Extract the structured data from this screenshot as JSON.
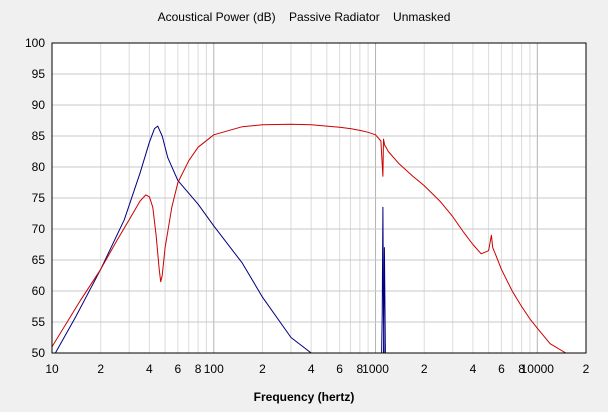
{
  "chart_data": {
    "type": "line",
    "title": "Acoustical Power (dB)    Passive Radiator    Unmasked",
    "xlabel": "Frequency (hertz)",
    "ylabel": "",
    "xscale": "log",
    "xlim": [
      10,
      20000
    ],
    "ylim": [
      50,
      100
    ],
    "grid": true,
    "legend": "none",
    "y_ticks": [
      50,
      55,
      60,
      65,
      70,
      75,
      80,
      85,
      90,
      95,
      100
    ],
    "x_ticks": [
      {
        "value": 10,
        "label": "10"
      },
      {
        "value": 20,
        "label": "2"
      },
      {
        "value": 40,
        "label": "4"
      },
      {
        "value": 60,
        "label": "6"
      },
      {
        "value": 80,
        "label": "8"
      },
      {
        "value": 100,
        "label": "100"
      },
      {
        "value": 200,
        "label": "2"
      },
      {
        "value": 400,
        "label": "4"
      },
      {
        "value": 600,
        "label": "6"
      },
      {
        "value": 800,
        "label": "8"
      },
      {
        "value": 1000,
        "label": "1000"
      },
      {
        "value": 2000,
        "label": "2"
      },
      {
        "value": 4000,
        "label": "4"
      },
      {
        "value": 6000,
        "label": "6"
      },
      {
        "value": 8000,
        "label": "8"
      },
      {
        "value": 10000,
        "label": "10000"
      },
      {
        "value": 20000,
        "label": "2"
      }
    ],
    "series": [
      {
        "color": "#00007f",
        "x": [
          10.5,
          14,
          20,
          28,
          35,
          40,
          43,
          45,
          48,
          52,
          60,
          80,
          100,
          150,
          200,
          300,
          400,
          500
        ],
        "y": [
          50,
          55.8,
          63.5,
          71.5,
          79,
          84,
          86.2,
          86.6,
          85,
          81.5,
          77.8,
          74,
          70.5,
          64.5,
          59,
          52.5,
          50,
          50
        ],
        "segments": [
          {
            "x": [
              1090,
              1100,
              1110,
              1120,
              1130
            ],
            "y": [
              50,
              56,
              73.5,
              56,
              50
            ]
          },
          {
            "x": [
              1120,
              1135,
              1150
            ],
            "y": [
              50,
              67,
              50
            ]
          }
        ]
      },
      {
        "color": "#cc0000",
        "x": [
          10,
          15,
          20,
          25,
          30,
          35,
          38,
          40,
          42,
          44,
          46,
          47,
          48,
          50,
          55,
          60,
          70,
          80,
          100,
          150,
          200,
          300,
          400,
          500,
          600,
          700,
          800,
          900,
          1000,
          1080,
          1110,
          1120,
          1140,
          1160,
          1200,
          1400,
          1700,
          2000,
          2500,
          3000,
          3500,
          4000,
          4500,
          5000,
          5200,
          5300,
          5500,
          6000,
          7000,
          8000,
          9000,
          10000,
          12000,
          15000
        ],
        "y": [
          51,
          58.5,
          63.5,
          68,
          71.5,
          74.5,
          75.5,
          75.2,
          73.5,
          69,
          63.5,
          61.5,
          62.5,
          67,
          73.5,
          77.5,
          81,
          83.2,
          85.2,
          86.5,
          86.8,
          86.9,
          86.8,
          86.6,
          86.4,
          86.2,
          85.9,
          85.6,
          85.2,
          84.2,
          78.5,
          84.5,
          83.5,
          83.2,
          82.5,
          80.5,
          78.5,
          77,
          74.5,
          72,
          69.5,
          67.5,
          66,
          66.5,
          69,
          67,
          66,
          63.5,
          60,
          57.5,
          55.5,
          54,
          51.5,
          50
        ]
      }
    ]
  }
}
